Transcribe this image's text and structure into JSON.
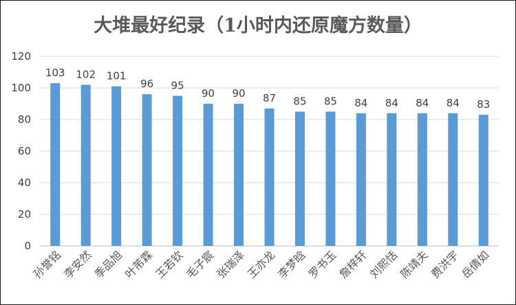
{
  "chart_data": {
    "type": "bar",
    "title": "大堆最好纪录（1小时内还原魔方数量）",
    "xlabel": "",
    "ylabel": "",
    "ylim": [
      0,
      120
    ],
    "yticks": [
      0,
      20,
      40,
      60,
      80,
      100,
      120
    ],
    "grid": true,
    "legend": "none",
    "bar_color": "#5b9bd5",
    "categories": [
      "孙誉铭",
      "李安然",
      "季品旭",
      "叶芾霖",
      "王若钦",
      "毛子宸",
      "张瑞泽",
      "王亦龙",
      "李梦晗",
      "罗书玉",
      "詹梓轩",
      "刘熙恬",
      "陈靖夫",
      "费洪宇",
      "岳倩如"
    ],
    "values": [
      103,
      102,
      101,
      96,
      95,
      90,
      90,
      87,
      85,
      85,
      84,
      84,
      84,
      84,
      83
    ]
  }
}
